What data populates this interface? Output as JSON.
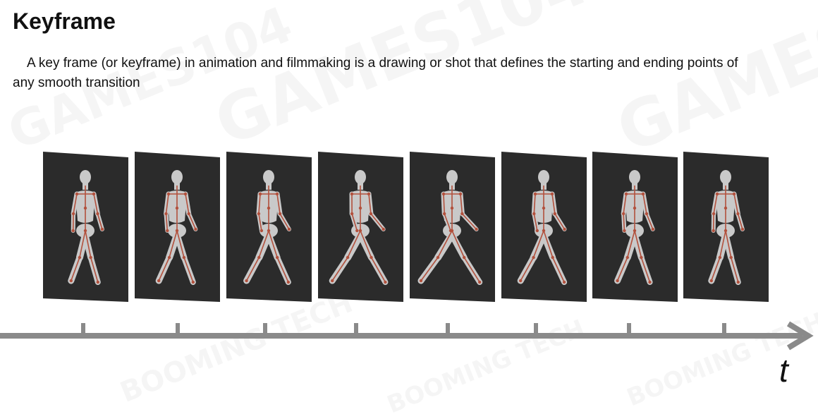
{
  "slide": {
    "title": "Keyframe",
    "description": "A key frame (or keyframe) in animation and filmmaking is a drawing or shot that defines the starting and ending points of any smooth transition"
  },
  "frames": [
    {
      "name": "frame-1",
      "pose": 0.15
    },
    {
      "name": "frame-2",
      "pose": 0.35
    },
    {
      "name": "frame-3",
      "pose": 0.55
    },
    {
      "name": "frame-4",
      "pose": 0.85
    },
    {
      "name": "frame-5",
      "pose": 1.0
    },
    {
      "name": "frame-6",
      "pose": 0.6
    },
    {
      "name": "frame-7",
      "pose": 0.3
    },
    {
      "name": "frame-8",
      "pose": 0.15
    }
  ],
  "timeline": {
    "axis_label": "t",
    "tick_count": 8,
    "colors": {
      "axis": "#8a8a8a",
      "frame_bg": "#2b2b2b",
      "body": "#c9c9c9",
      "bones": "#b2503c"
    }
  }
}
